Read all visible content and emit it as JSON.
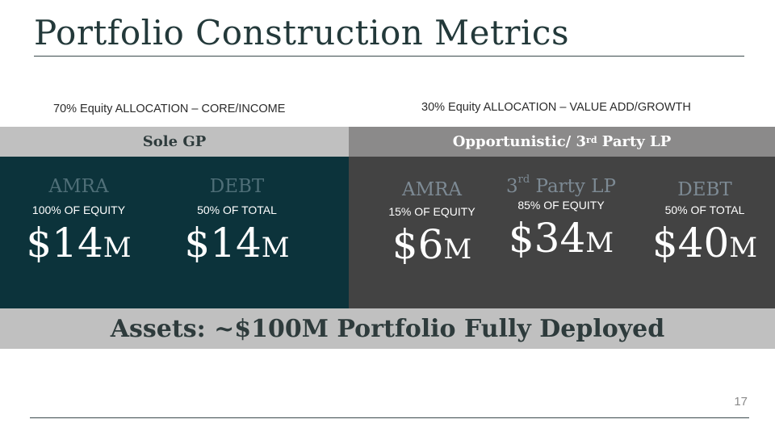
{
  "slide": {
    "title": "Portfolio Construction Metrics",
    "page_number": "17"
  },
  "left": {
    "allocation": "70% Equity ALLOCATION – CORE/INCOME",
    "header": "Sole GP",
    "columns": [
      {
        "name": "AMRA",
        "sub": "100% OF EQUITY",
        "amount": "$14",
        "suffix": "M"
      },
      {
        "name": "DEBT",
        "sub": "50% OF TOTAL",
        "amount": "$14",
        "suffix": "M"
      }
    ]
  },
  "right": {
    "allocation": "30% Equity ALLOCATION – VALUE ADD/GROWTH",
    "header_main": "Opportunistic/ 3",
    "header_sup": "rd",
    "header_tail": " Party LP",
    "columns": [
      {
        "name": "AMRA",
        "sub": "15% OF EQUITY",
        "amount": "$6",
        "suffix": "M"
      },
      {
        "name_main": "3",
        "name_sup": "rd",
        "name_tail": " Party LP",
        "sub": "85% OF EQUITY",
        "amount": "$34",
        "suffix": "M"
      },
      {
        "name": "DEBT",
        "sub": "50% OF TOTAL",
        "amount": "$40",
        "suffix": "M"
      }
    ]
  },
  "assets_line": "Assets: ~$100M Portfolio Fully Deployed"
}
